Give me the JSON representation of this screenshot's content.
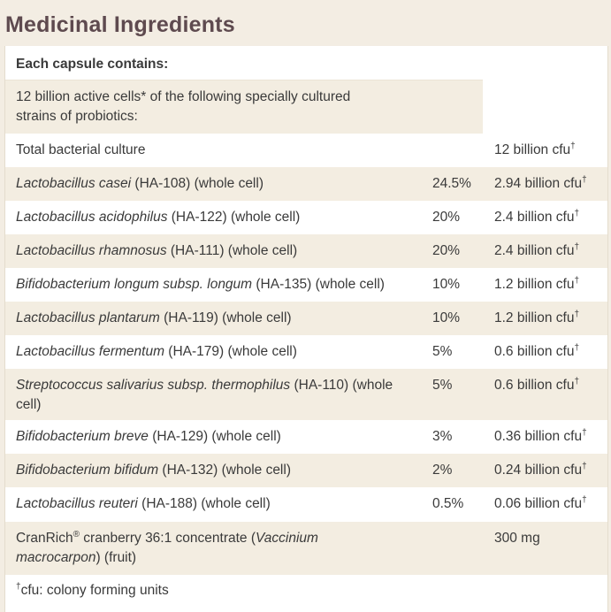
{
  "title": "Medicinal Ingredients",
  "header": "Each capsule contains:",
  "intro": "12 billion active cells* of the following specially cultured strains of probiotics:",
  "total": {
    "label": "Total bacterial culture",
    "amount": "12 billion cfu",
    "mark": "†"
  },
  "rows": [
    {
      "species": "Lactobacillus casei",
      "suffix": " (HA-108) (whole cell)",
      "pct": "24.5%",
      "amount": "2.94 billion cfu",
      "mark": "†"
    },
    {
      "species": "Lactobacillus acidophilus",
      "suffix": " (HA-122) (whole cell)",
      "pct": "20%",
      "amount": "2.4 billion cfu",
      "mark": "†"
    },
    {
      "species": "Lactobacillus rhamnosus",
      "suffix": " (HA-111) (whole cell)",
      "pct": "20%",
      "amount": "2.4 billion cfu",
      "mark": "†"
    },
    {
      "species": "Bifidobacterium longum subsp. longum",
      "suffix": " (HA-135) (whole cell)",
      "pct": "10%",
      "amount": "1.2 billion cfu",
      "mark": "†"
    },
    {
      "species": "Lactobacillus plantarum",
      "suffix": " (HA-119) (whole cell)",
      "pct": "10%",
      "amount": "1.2 billion cfu",
      "mark": "†"
    },
    {
      "species": "Lactobacillus fermentum",
      "suffix": " (HA-179) (whole cell)",
      "pct": "5%",
      "amount": "0.6 billion cfu",
      "mark": "†"
    },
    {
      "species": "Streptococcus salivarius subsp. thermophilus",
      "suffix": " (HA-110) (whole cell)",
      "pct": "5%",
      "amount": "0.6 billion cfu",
      "mark": "†"
    },
    {
      "species": "Bifidobacterium breve",
      "suffix": " (HA-129) (whole cell)",
      "pct": "3%",
      "amount": "0.36 billion cfu",
      "mark": "†"
    },
    {
      "species": "Bifidobacterium bifidum",
      "suffix": " (HA-132) (whole cell)",
      "pct": "2%",
      "amount": "0.24 billion cfu",
      "mark": "†"
    },
    {
      "species": "Lactobacillus reuteri",
      "suffix": " (HA-188) (whole cell)",
      "pct": "0.5%",
      "amount": "0.06 billion cfu",
      "mark": "†"
    }
  ],
  "cranrich": {
    "brand": "CranRich",
    "reg": "®",
    "pre": " cranberry 36:1 concentrate (",
    "latin": "Vaccinium macrocarpon",
    "post": ") (fruit)",
    "amount": "300 mg"
  },
  "footnote": {
    "mark": "†",
    "text": "cfu: colony forming units"
  }
}
